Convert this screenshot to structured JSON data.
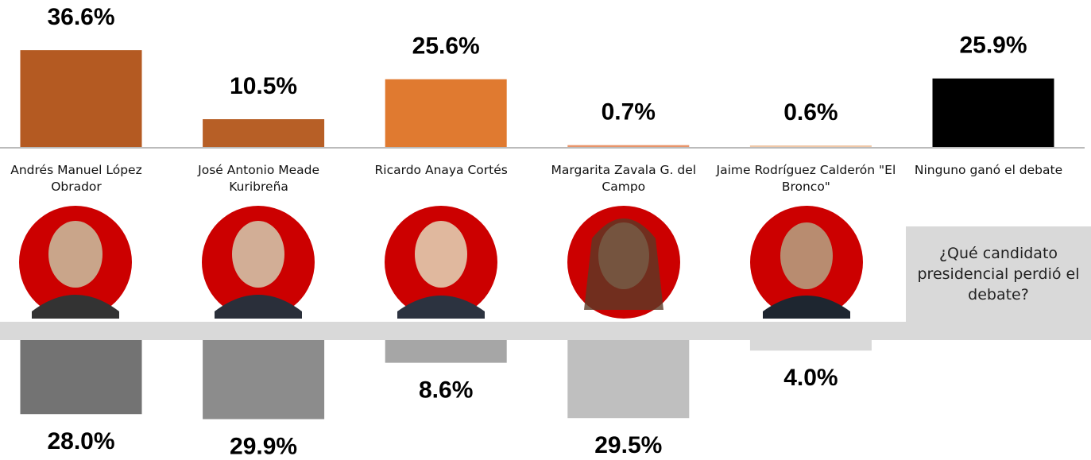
{
  "chart_data": [
    {
      "type": "bar",
      "categories": [
        "Andrés Manuel López Obrador",
        "José Antonio Meade Kuribreña",
        "Ricardo Anaya Cortés",
        "Margarita Zavala G. del Campo",
        "Jaime Rodríguez Calderón \"El Bronco\"",
        "Ninguno ganó el debate"
      ],
      "values": [
        36.6,
        10.5,
        25.6,
        0.7,
        0.6,
        25.9
      ],
      "value_labels": [
        "36.6%",
        "10.5%",
        "25.6%",
        "0.7%",
        "0.6%",
        "25.9%"
      ],
      "colors": [
        "#b45a22",
        "#b75f26",
        "#e07a30",
        "#e8946a",
        "#f0c8a8",
        "#000000"
      ]
    },
    {
      "type": "bar",
      "title": "¿Qué candidato presidencial perdió el debate?",
      "values": [
        28.0,
        29.9,
        8.6,
        29.5,
        4.0
      ],
      "value_labels": [
        "28.0%",
        "29.9%",
        "8.6%",
        "29.5%",
        "4.0%"
      ],
      "colors": [
        "#737373",
        "#8c8c8c",
        "#a6a6a6",
        "#bfbfbf",
        "#d9d9d9"
      ]
    }
  ]
}
